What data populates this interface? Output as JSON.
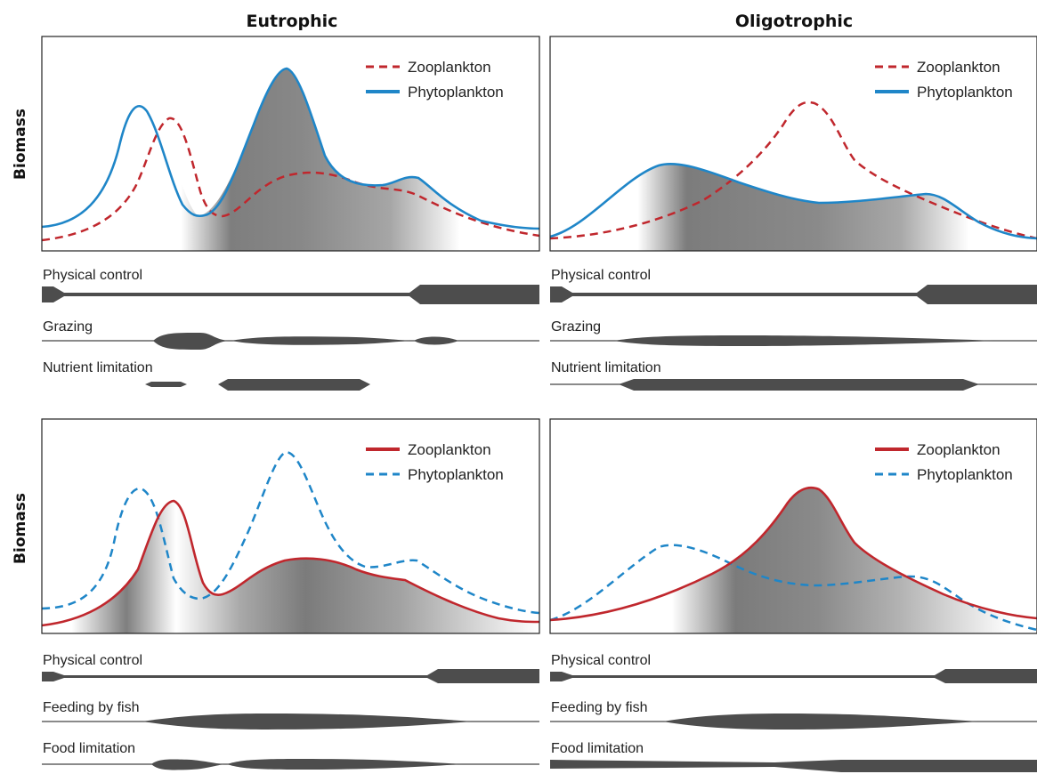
{
  "columns": [
    "Eutrophic",
    "Oligotrophic"
  ],
  "y_axis_label": "Biomass",
  "colors": {
    "zooplankton": "#c0272d",
    "phytoplankton": "#1f86c8",
    "band": "#4d4d4d"
  },
  "panels": [
    {
      "id": "top-eutrophic",
      "legend": [
        {
          "label": "Zooplankton",
          "color": "#c0272d",
          "dashed": true
        },
        {
          "label": "Phytoplankton",
          "color": "#1f86c8",
          "dashed": false
        }
      ],
      "bands": [
        {
          "label": "Physical control"
        },
        {
          "label": "Grazing"
        },
        {
          "label": "Nutrient limitation"
        }
      ]
    },
    {
      "id": "top-oligotrophic",
      "legend": [
        {
          "label": "Zooplankton",
          "color": "#c0272d",
          "dashed": true
        },
        {
          "label": "Phytoplankton",
          "color": "#1f86c8",
          "dashed": false
        }
      ],
      "bands": [
        {
          "label": "Physical control"
        },
        {
          "label": "Grazing"
        },
        {
          "label": "Nutrient limitation"
        }
      ]
    },
    {
      "id": "bottom-eutrophic",
      "legend": [
        {
          "label": "Zooplankton",
          "color": "#c0272d",
          "dashed": false
        },
        {
          "label": "Phytoplankton",
          "color": "#1f86c8",
          "dashed": true
        }
      ],
      "bands": [
        {
          "label": "Physical control"
        },
        {
          "label": "Feeding by fish"
        },
        {
          "label": "Food limitation"
        }
      ]
    },
    {
      "id": "bottom-oligotrophic",
      "legend": [
        {
          "label": "Zooplankton",
          "color": "#c0272d",
          "dashed": false
        },
        {
          "label": "Phytoplankton",
          "color": "#1f86c8",
          "dashed": true
        }
      ],
      "bands": [
        {
          "label": "Physical control"
        },
        {
          "label": "Feeding by fish"
        },
        {
          "label": "Food limitation"
        }
      ]
    }
  ]
}
